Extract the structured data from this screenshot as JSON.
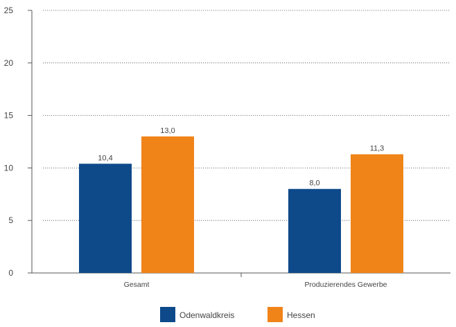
{
  "chart_data": {
    "type": "bar",
    "categories": [
      "Gesamt",
      "Produzierendes Gewerbe"
    ],
    "series": [
      {
        "name": "Odenwaldkreis",
        "values": [
          10.4,
          8.0
        ],
        "labels": [
          "10,4",
          "8,0"
        ],
        "color": "#0e4a8a"
      },
      {
        "name": "Hessen",
        "values": [
          13.0,
          11.3
        ],
        "labels": [
          "13,0",
          "11,3"
        ],
        "color": "#f08419"
      }
    ],
    "ylim": [
      0,
      25
    ],
    "yticks": [
      0,
      5,
      10,
      15,
      20,
      25
    ],
    "ytick_labels": [
      "0",
      "5",
      "10",
      "15",
      "20",
      "25"
    ],
    "grid": true,
    "legend": "bottom-center",
    "title": "",
    "xlabel": "",
    "ylabel": ""
  }
}
